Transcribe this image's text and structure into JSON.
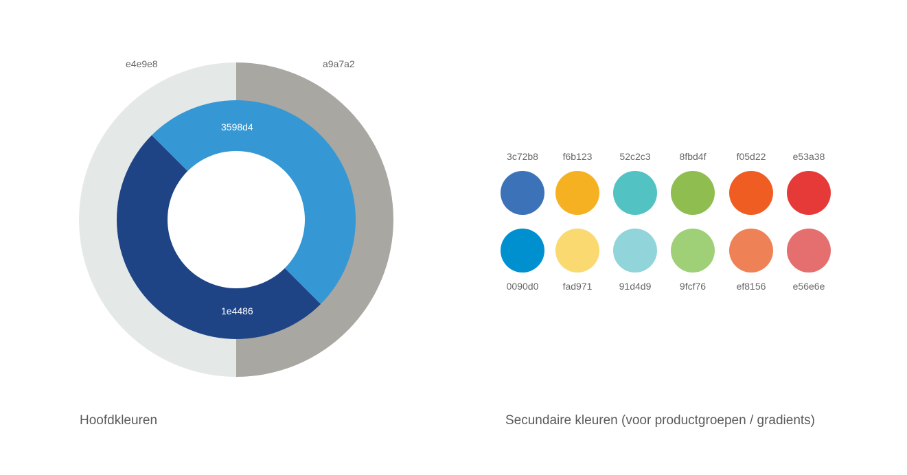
{
  "primary": {
    "caption": "Hoofdkleuren",
    "outer_ring": [
      {
        "label": "e4e9e8",
        "color": "#e4e9e8"
      },
      {
        "label": "a9a7a2",
        "color": "#a9a7a2"
      }
    ],
    "inner_ring": [
      {
        "label": "3598d4",
        "color": "#3598d4"
      },
      {
        "label": "1e4486",
        "color": "#1e4486"
      }
    ]
  },
  "secondary": {
    "caption": "Secundaire kleuren (voor productgroepen / gradients)",
    "top_row": [
      {
        "label": "3c72b8",
        "color": "#3c72b8"
      },
      {
        "label": "f6b123",
        "color": "#f6b123"
      },
      {
        "label": "52c2c3",
        "color": "#52c2c3"
      },
      {
        "label": "8fbd4f",
        "color": "#8fbd4f"
      },
      {
        "label": "f05d22",
        "color": "#f05d22"
      },
      {
        "label": "e53a38",
        "color": "#e53a38"
      }
    ],
    "bottom_row": [
      {
        "label": "0090d0",
        "color": "#0090d0"
      },
      {
        "label": "fad971",
        "color": "#fad971"
      },
      {
        "label": "91d4d9",
        "color": "#91d4d9"
      },
      {
        "label": "9fcf76",
        "color": "#9fcf76"
      },
      {
        "label": "ef8156",
        "color": "#ef8156"
      },
      {
        "label": "e56e6e",
        "color": "#e56e6e"
      }
    ]
  }
}
